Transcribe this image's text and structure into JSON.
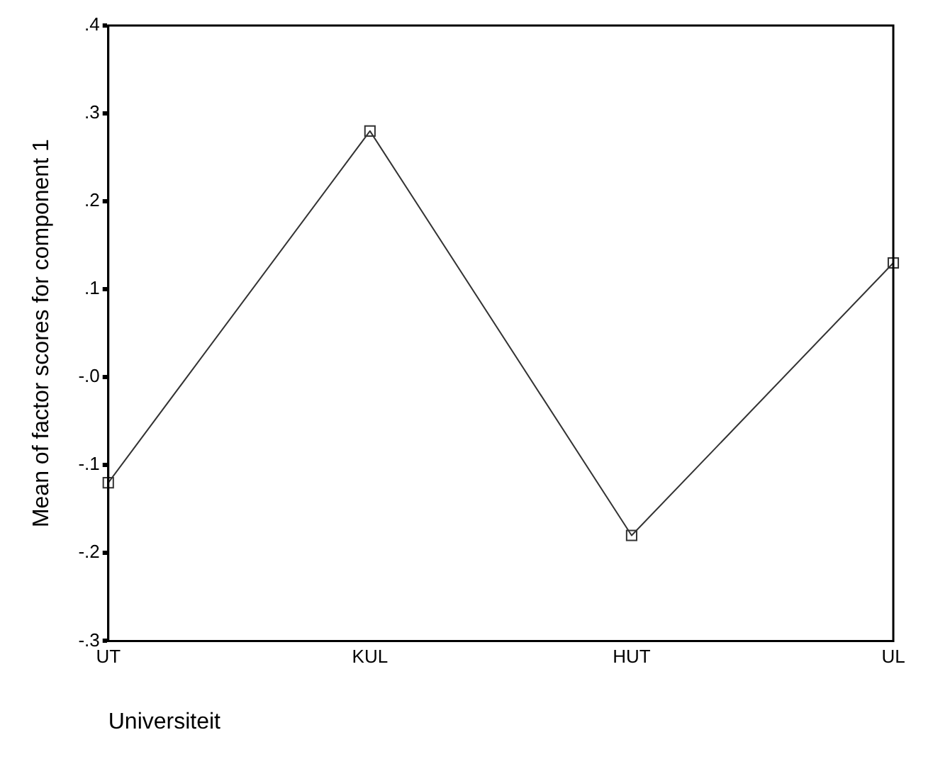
{
  "chart_data": {
    "type": "line",
    "xlabel": "Universiteit",
    "ylabel": "Mean of factor scores for component 1",
    "categories": [
      "UT",
      "KUL",
      "HUT",
      "UL"
    ],
    "series": [
      {
        "color": "#333333",
        "values": [
          -0.12,
          0.28,
          -0.18,
          0.13
        ]
      }
    ],
    "ylim": [
      -0.3,
      0.4
    ],
    "yticks": [
      {
        "value": -0.3,
        "label": "-.3"
      },
      {
        "value": -0.2,
        "label": "-.2"
      },
      {
        "value": -0.1,
        "label": "-.1"
      },
      {
        "value": 0,
        "label": "-.0"
      },
      {
        "value": 0.1,
        "label": ".1"
      },
      {
        "value": 0.2,
        "label": ".2"
      },
      {
        "value": 0.3,
        "label": ".3"
      },
      {
        "value": 0.4,
        "label": ".4"
      }
    ],
    "grid": false,
    "legend": false,
    "marker": "square",
    "line_style": "solid"
  }
}
